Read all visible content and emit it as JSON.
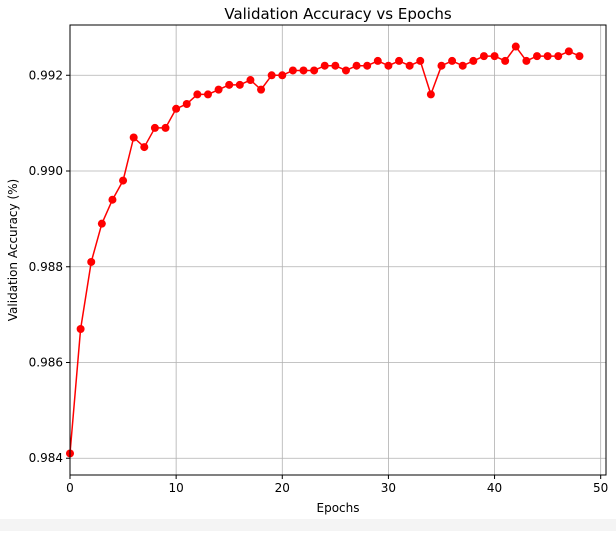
{
  "chart_data": {
    "type": "line",
    "title": "Validation Accuracy vs Epochs",
    "xlabel": "Epochs",
    "ylabel": "Validation Accuracy (%)",
    "xlim": [
      0,
      50.5
    ],
    "ylim": [
      0.98365,
      0.99305
    ],
    "xticks": [
      0,
      10,
      20,
      30,
      40,
      50
    ],
    "yticks": [
      0.984,
      0.986,
      0.988,
      0.99,
      0.992
    ],
    "grid": true,
    "legend": "none",
    "series": [
      {
        "color": "#ff0000",
        "marker": "circle",
        "x": [
          0,
          1,
          2,
          3,
          4,
          5,
          6,
          7,
          8,
          9,
          10,
          11,
          12,
          13,
          14,
          15,
          16,
          17,
          18,
          19,
          20,
          21,
          22,
          23,
          24,
          25,
          26,
          27,
          28,
          29,
          30,
          31,
          32,
          33,
          34,
          35,
          36,
          37,
          38,
          39,
          40,
          41,
          42,
          43,
          44,
          45,
          46,
          47,
          48
        ],
        "y": [
          0.9841,
          0.9867,
          0.9881,
          0.9889,
          0.9894,
          0.9898,
          0.9907,
          0.9905,
          0.9909,
          0.9909,
          0.9913,
          0.9914,
          0.9916,
          0.9916,
          0.9917,
          0.9918,
          0.9918,
          0.9919,
          0.9917,
          0.992,
          0.992,
          0.9921,
          0.9921,
          0.9921,
          0.9922,
          0.9922,
          0.9921,
          0.9922,
          0.9922,
          0.9923,
          0.9922,
          0.9923,
          0.9922,
          0.9923,
          0.9916,
          0.9922,
          0.9923,
          0.9922,
          0.9923,
          0.9924,
          0.9924,
          0.9923,
          0.9926,
          0.9923,
          0.9924,
          0.9924,
          0.9924,
          0.9925,
          0.9924
        ]
      }
    ]
  }
}
